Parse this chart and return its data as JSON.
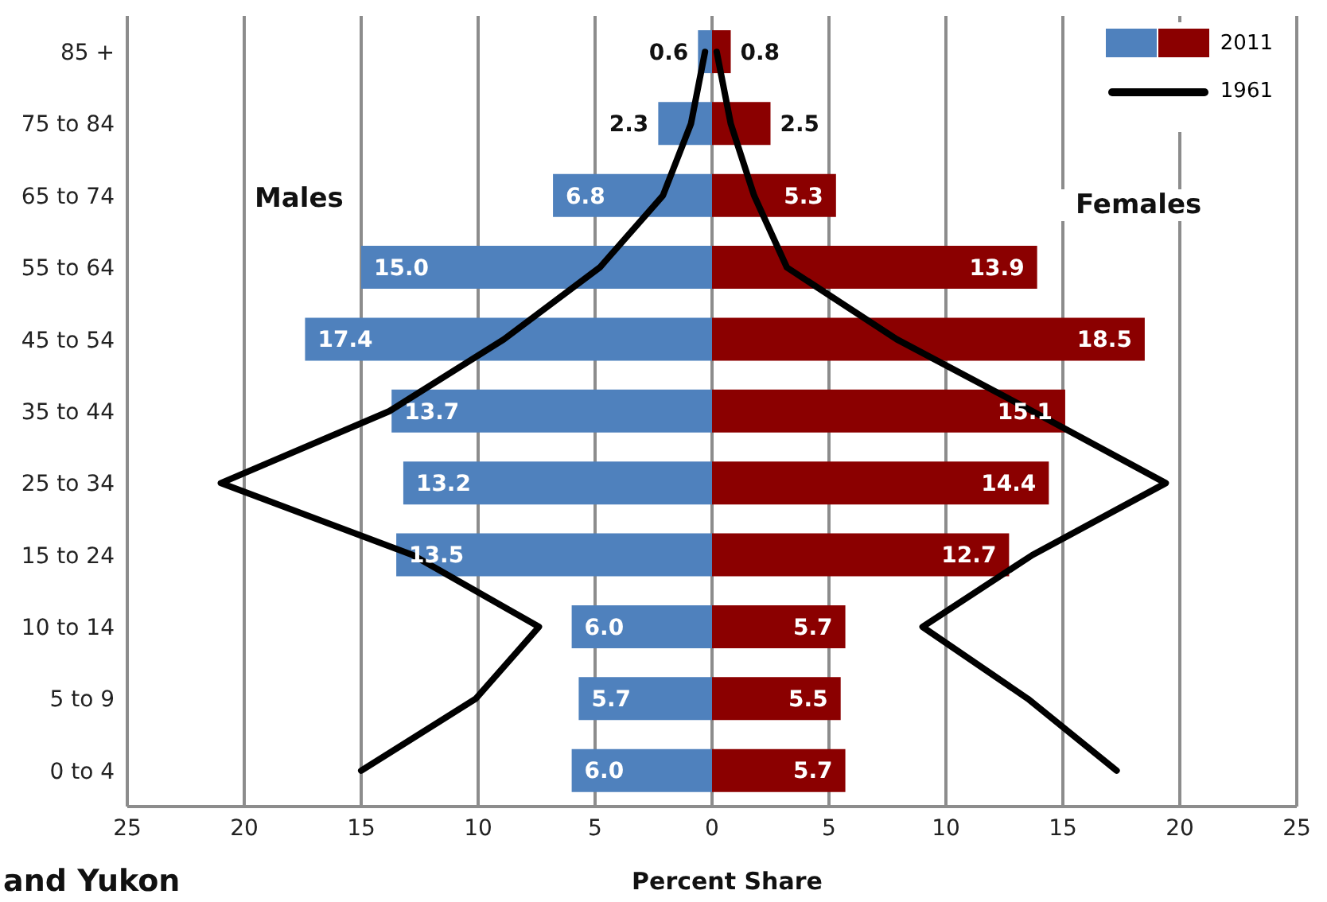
{
  "chart_data": {
    "type": "bar",
    "orientation": "horizontal",
    "categories": [
      "85 +",
      "75 to 84",
      "65 to 74",
      "55 to 64",
      "45 to 54",
      "35 to 44",
      "25 to 34",
      "15 to 24",
      "10 to 14",
      "5 to 9",
      "0 to 4"
    ],
    "series": [
      {
        "name": "2011",
        "color": "#4f81bd",
        "base": [
          -0.6,
          -2.3,
          -6.8,
          -15.0,
          -17.4,
          -13.7,
          -13.2,
          -13.5,
          -6.0,
          -5.7,
          -6.0
        ],
        "values": [
          0.6,
          2.3,
          6.8,
          15.0,
          17.4,
          13.7,
          13.2,
          13.5,
          6.0,
          5.7,
          6.0
        ],
        "value_labels": [
          "0.6",
          "2.3",
          "6.8",
          "15.0",
          "17.4",
          "13.7",
          "13.2",
          "13.5",
          "6.0",
          "5.7",
          "6.0"
        ]
      },
      {
        "color": "#8b0000",
        "values": [
          0.8,
          2.5,
          5.3,
          13.9,
          18.5,
          15.1,
          14.4,
          12.7,
          5.7,
          5.5,
          5.7
        ],
        "value_labels": [
          "0.8",
          "2.5",
          "5.3",
          "13.9",
          "18.5",
          "15.1",
          "14.4",
          "12.7",
          "5.7",
          "5.5",
          "5.7"
        ]
      },
      {
        "type": "line",
        "name": "1961",
        "color": "#000000",
        "values": [
          -0.3,
          -0.9,
          -2.1,
          -4.8,
          -8.9,
          -13.8,
          -21.0,
          -12.8,
          -7.4,
          -10.1,
          -15.0
        ]
      },
      {
        "type": "line",
        "color": "#000000",
        "values": [
          0.2,
          0.8,
          1.8,
          3.2,
          7.9,
          13.7,
          19.4,
          13.7,
          9.0,
          13.5,
          17.3
        ]
      }
    ],
    "xlim": [
      -25,
      25
    ],
    "xticks": [
      {
        "value": -25,
        "label": "25"
      },
      {
        "value": -20,
        "label": "20"
      },
      {
        "value": -15,
        "label": "15"
      },
      {
        "value": -10,
        "label": "10"
      },
      {
        "value": -5,
        "label": "5"
      },
      0,
      5,
      10,
      15,
      20,
      25
    ],
    "xlabel": "Percent Share",
    "grid": "x",
    "legend": "top right",
    "annotations": [
      "Males",
      "Females",
      "and Yukon"
    ]
  }
}
